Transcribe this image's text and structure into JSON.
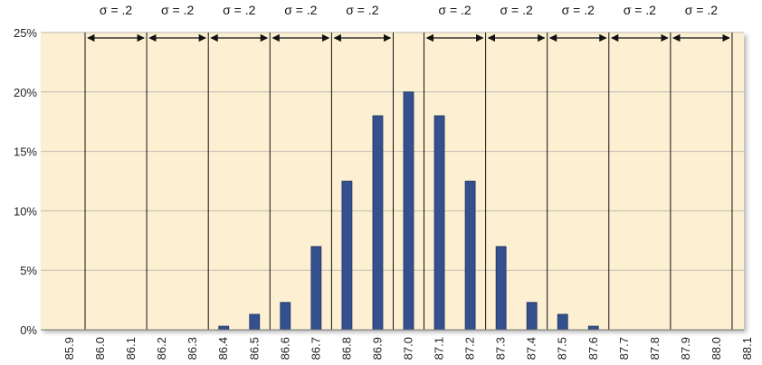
{
  "chart_data": {
    "type": "bar",
    "title": "",
    "xlabel": "",
    "ylabel": "",
    "ylim": [
      0,
      25
    ],
    "xlim": [
      85.9,
      88.1
    ],
    "grid": true,
    "legend": "none",
    "y_ticks": [
      {
        "value": 0,
        "label": "0%"
      },
      {
        "value": 5,
        "label": "5%"
      },
      {
        "value": 10,
        "label": "10%"
      },
      {
        "value": 15,
        "label": "15%"
      },
      {
        "value": 20,
        "label": "20%"
      },
      {
        "value": 25,
        "label": "25%"
      }
    ],
    "x_ticks": [
      {
        "value": 85.9,
        "label": "85.9"
      },
      {
        "value": 86.0,
        "label": "86.0"
      },
      {
        "value": 86.1,
        "label": "86.1"
      },
      {
        "value": 86.2,
        "label": "86.2"
      },
      {
        "value": 86.3,
        "label": "86.3"
      },
      {
        "value": 86.4,
        "label": "86.4"
      },
      {
        "value": 86.5,
        "label": "86.5"
      },
      {
        "value": 86.6,
        "label": "86.6"
      },
      {
        "value": 86.7,
        "label": "86.7"
      },
      {
        "value": 86.8,
        "label": "86.8"
      },
      {
        "value": 86.9,
        "label": "86.9"
      },
      {
        "value": 87.0,
        "label": "87.0"
      },
      {
        "value": 87.1,
        "label": "87.1"
      },
      {
        "value": 87.2,
        "label": "87.2"
      },
      {
        "value": 87.3,
        "label": "87.3"
      },
      {
        "value": 87.4,
        "label": "87.4"
      },
      {
        "value": 87.5,
        "label": "87.5"
      },
      {
        "value": 87.6,
        "label": "87.6"
      },
      {
        "value": 87.7,
        "label": "87.7"
      },
      {
        "value": 87.8,
        "label": "87.8"
      },
      {
        "value": 87.9,
        "label": "87.9"
      },
      {
        "value": 88.0,
        "label": "88.0"
      },
      {
        "value": 88.1,
        "label": "88.1"
      }
    ],
    "bars": [
      {
        "x": 85.9,
        "value": 0
      },
      {
        "x": 86.0,
        "value": 0
      },
      {
        "x": 86.1,
        "value": 0
      },
      {
        "x": 86.2,
        "value": 0
      },
      {
        "x": 86.3,
        "value": 0
      },
      {
        "x": 86.4,
        "value": 0.3
      },
      {
        "x": 86.5,
        "value": 1.3
      },
      {
        "x": 86.6,
        "value": 2.3
      },
      {
        "x": 86.7,
        "value": 7
      },
      {
        "x": 86.8,
        "value": 12.5
      },
      {
        "x": 86.9,
        "value": 18
      },
      {
        "x": 87.0,
        "value": 20
      },
      {
        "x": 87.1,
        "value": 18
      },
      {
        "x": 87.2,
        "value": 12.5
      },
      {
        "x": 87.3,
        "value": 7
      },
      {
        "x": 87.4,
        "value": 2.3
      },
      {
        "x": 87.5,
        "value": 1.3
      },
      {
        "x": 87.6,
        "value": 0.3
      },
      {
        "x": 87.7,
        "value": 0
      },
      {
        "x": 87.8,
        "value": 0
      },
      {
        "x": 87.9,
        "value": 0
      },
      {
        "x": 88.0,
        "value": 0
      },
      {
        "x": 88.1,
        "value": 0
      }
    ],
    "sigma_boundaries": [
      85.95,
      86.15,
      86.35,
      86.55,
      86.75,
      86.95,
      87.05,
      87.25,
      87.45,
      87.65,
      87.85,
      88.05
    ],
    "sigma_intervals": [
      {
        "from": 85.95,
        "to": 86.15,
        "label": "σ = .2"
      },
      {
        "from": 86.15,
        "to": 86.35,
        "label": "σ = .2"
      },
      {
        "from": 86.35,
        "to": 86.55,
        "label": "σ = .2"
      },
      {
        "from": 86.55,
        "to": 86.75,
        "label": "σ = .2"
      },
      {
        "from": 86.75,
        "to": 86.95,
        "label": "σ = .2"
      },
      {
        "from": 87.05,
        "to": 87.25,
        "label": "σ = .2"
      },
      {
        "from": 87.25,
        "to": 87.45,
        "label": "σ = .2"
      },
      {
        "from": 87.45,
        "to": 87.65,
        "label": "σ = .2"
      },
      {
        "from": 87.65,
        "to": 87.85,
        "label": "σ = .2"
      },
      {
        "from": 87.85,
        "to": 88.05,
        "label": "σ = .2"
      }
    ],
    "colors": {
      "bar_fill": "#34508e",
      "bar_stroke": "#1c2f5c",
      "plot_background": "#fdf0d2",
      "grid_line": "#bfbab0",
      "boundary_line": "#111111",
      "arrow": "#111111"
    }
  }
}
